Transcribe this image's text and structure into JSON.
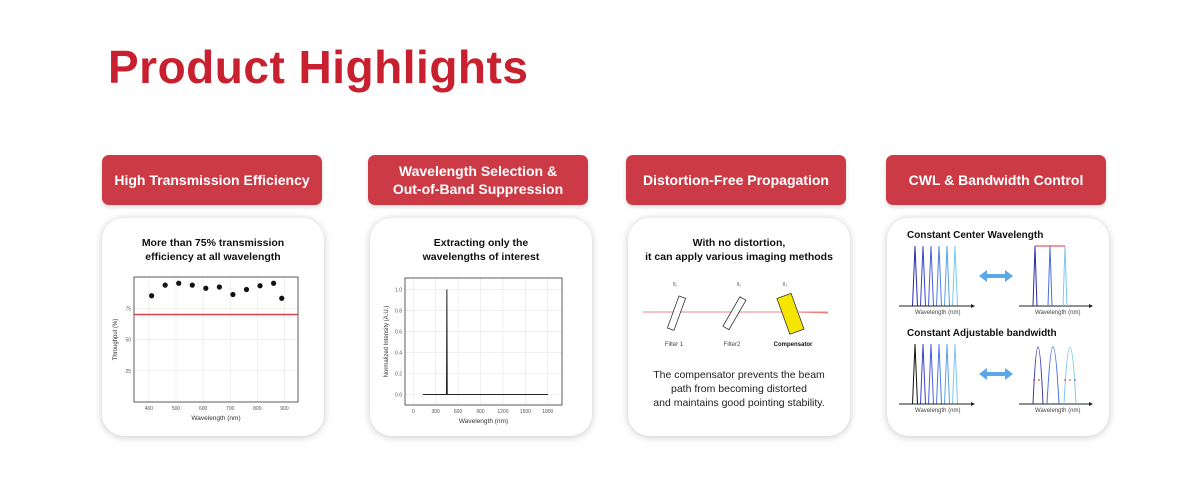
{
  "page": {
    "title": "Product Highlights"
  },
  "colors": {
    "title": "#c8202f",
    "header_button": "#cc3a46",
    "threshold_line": "#e0404a",
    "compensator": "#f5e600",
    "arrow": "#5aa8ea"
  },
  "highlights": [
    {
      "label": "High Transmission Efficiency",
      "card_title": "More than 75% transmission\nefficiency at all wavelength"
    },
    {
      "label": "Wavelength Selection &\nOut-of-Band Suppression",
      "card_title": "Extracting only the\nwavelengths of interest"
    },
    {
      "label": "Distortion-Free Propagation",
      "card_title": "With no distortion,\nit can apply various imaging methods",
      "filters": [
        "Filter 1",
        "Filter2",
        "Compensator"
      ],
      "angles": [
        "θ₁",
        "θ₂",
        "θ₃"
      ],
      "caption": "The compensator prevents the beam\npath from becoming distorted\nand maintains good pointing stability."
    },
    {
      "label": "CWL & Bandwidth Control",
      "sections": [
        {
          "title": "Constant Center Wavelength",
          "axis_left": "Wavelength (nm)",
          "axis_right": "Wavelength (nm)"
        },
        {
          "title": "Constant Adjustable bandwidth",
          "axis_left": "Wavelength (nm)",
          "axis_right": "Wavelength (nm)"
        }
      ]
    }
  ],
  "chart_data": [
    {
      "type": "scatter",
      "xlabel": "Wavelength (nm)",
      "ylabel": "Throughput (%)",
      "xlim": [
        345,
        950
      ],
      "ylim": [
        0,
        100
      ],
      "xticks": [
        400,
        500,
        600,
        700,
        800,
        900
      ],
      "yticks": [
        25,
        50,
        75
      ],
      "grid": true,
      "x": [
        410,
        460,
        510,
        560,
        610,
        660,
        710,
        760,
        810,
        860,
        890
      ],
      "y": [
        85,
        93.5,
        95,
        93.5,
        91,
        92,
        86,
        90,
        93,
        95,
        83
      ],
      "reference_line": {
        "y": 70,
        "color": "#e0404a"
      }
    },
    {
      "type": "line",
      "xlabel": "Wavelength (nm)",
      "ylabel": "Normalized Intensity (A.U.)",
      "xlim": [
        -110,
        1990
      ],
      "ylim": [
        -0.1,
        1.11
      ],
      "xticks": [
        0,
        300,
        600,
        900,
        1200,
        1500,
        1800
      ],
      "yticks": [
        0.0,
        0.2,
        0.4,
        0.6,
        0.8,
        1.0
      ],
      "grid": true,
      "x": [
        130,
        445,
        450,
        455,
        1800
      ],
      "y": [
        0,
        0,
        1.0,
        0,
        0
      ]
    }
  ]
}
